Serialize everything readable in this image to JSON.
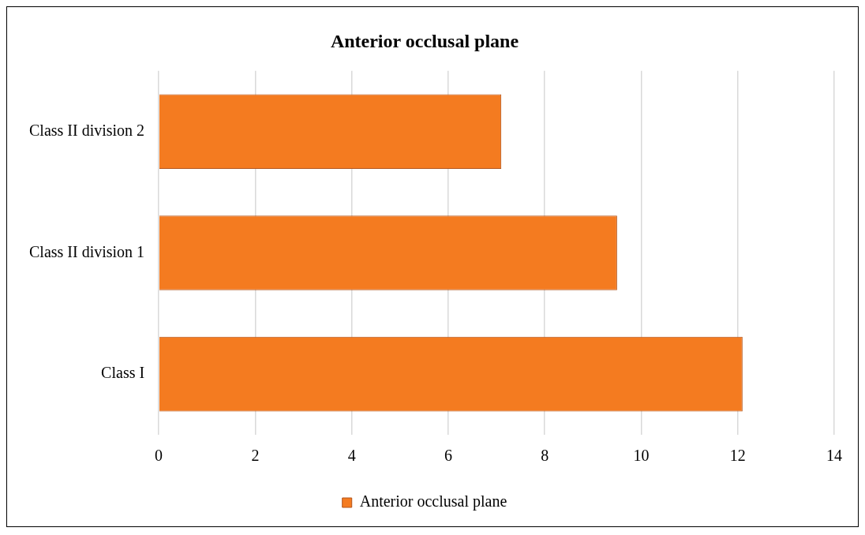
{
  "chart_data": {
    "type": "bar",
    "orientation": "horizontal",
    "title": "Anterior occlusal plane",
    "categories": [
      "Class II division 2",
      "Class II division 1",
      "Class I"
    ],
    "series": [
      {
        "name": "Anterior occlusal plane",
        "color": "#f47b20",
        "values": [
          7.1,
          9.5,
          12.1
        ]
      }
    ],
    "xlim": [
      0,
      14
    ],
    "xticks": [
      0,
      2,
      4,
      6,
      8,
      10,
      12,
      14
    ],
    "grid": "x",
    "legend": "bottom"
  }
}
